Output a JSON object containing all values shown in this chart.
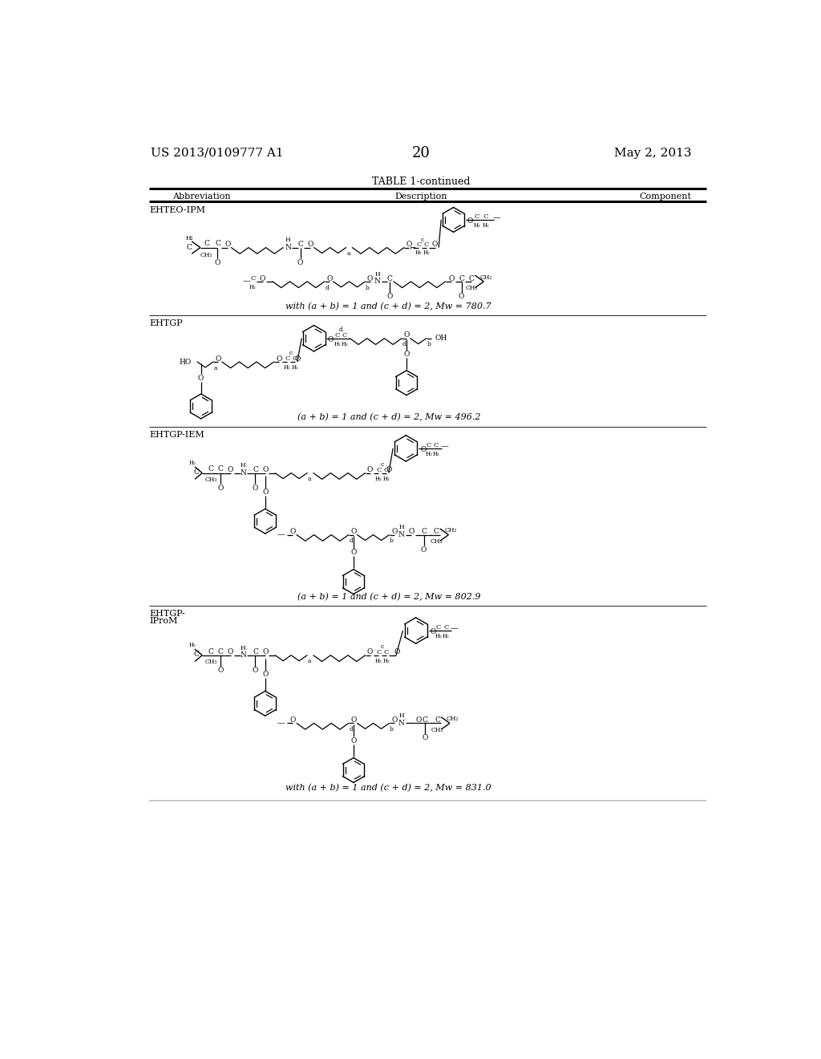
{
  "page_number": "20",
  "left_header": "US 2013/0109777 A1",
  "right_header": "May 2, 2013",
  "table_title": "TABLE 1-continued",
  "col_headers": [
    "Abbreviation",
    "Description",
    "Component"
  ],
  "background_color": "#ffffff",
  "text_color": "#000000",
  "rows": [
    {
      "abbreviation": "EHTEO-IPM",
      "mw_text": "with (a + b) = 1 and (c + d) = 2, Mw = 780.7"
    },
    {
      "abbreviation": "EHTGP",
      "mw_text": "(a + b) = 1 and (c + d) = 2, Mw = 496.2"
    },
    {
      "abbreviation": "EHTGP-IEM",
      "mw_text": "(a + b) = 1 and (c + d) = 2, Mw = 802.9"
    },
    {
      "abbreviation": "EHTGP-\nIProM",
      "mw_text": "with (a + b) = 1 and (c + d) = 2, Mw = 831.0"
    }
  ]
}
